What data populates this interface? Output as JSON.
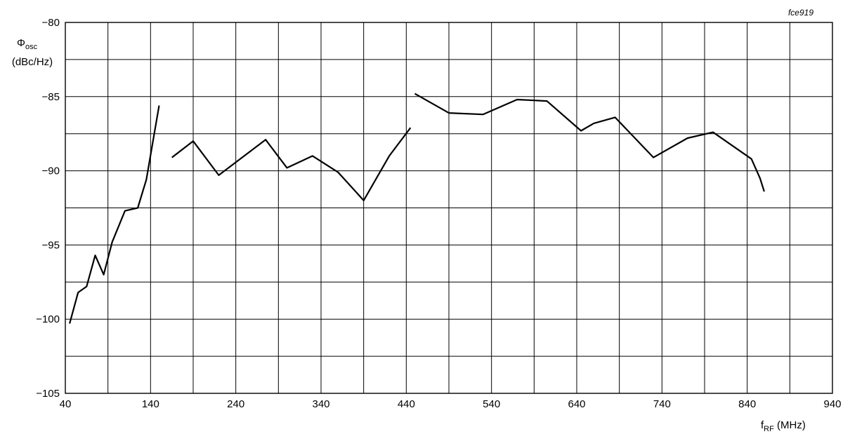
{
  "chart_data": {
    "type": "line",
    "figure_id": "fce919",
    "ylabel": {
      "symbol": "Φ",
      "subscript": "osc",
      "unit": "(dBc/Hz)"
    },
    "xlabel": {
      "symbol": "f",
      "subscript": "RF",
      "unit": " (MHz)"
    },
    "xlim": [
      40,
      940
    ],
    "ylim": [
      -105,
      -80
    ],
    "x_ticks": [
      40,
      140,
      240,
      340,
      440,
      540,
      640,
      740,
      840,
      940
    ],
    "x_tick_labels": [
      "40",
      "140",
      "240",
      "340",
      "440",
      "540",
      "640",
      "740",
      "840",
      "940"
    ],
    "y_ticks": [
      -80,
      -85,
      -90,
      -95,
      -100,
      -105
    ],
    "y_tick_labels": [
      "−80",
      "−85",
      "−90",
      "−95",
      "−100",
      "−105"
    ],
    "grid": true,
    "grid_x_step": 50,
    "grid_y_step": 2.5,
    "colors": {
      "line": "#000000",
      "grid": "#000000",
      "background": "#ffffff"
    },
    "series": [
      {
        "x": [
          45,
          55,
          65,
          75,
          85,
          95,
          110,
          125,
          135,
          150
        ],
        "y": [
          -100.3,
          -98.2,
          -97.8,
          -95.7,
          -97.0,
          -94.8,
          -92.7,
          -92.5,
          -90.6,
          -85.6
        ]
      },
      {
        "x": [
          165,
          190,
          220,
          275,
          300,
          330,
          360,
          390,
          420,
          445
        ],
        "y": [
          -89.1,
          -88.0,
          -90.3,
          -87.9,
          -89.8,
          -89.0,
          -90.1,
          -92.0,
          -89.0,
          -87.1
        ]
      },
      {
        "x": [
          450,
          490,
          530,
          570,
          605,
          645,
          660,
          685,
          730,
          770,
          800,
          845,
          855,
          860
        ],
        "y": [
          -84.8,
          -86.1,
          -86.2,
          -85.2,
          -85.3,
          -87.3,
          -86.8,
          -86.4,
          -89.1,
          -87.8,
          -87.4,
          -89.2,
          -90.5,
          -91.4
        ]
      }
    ]
  }
}
